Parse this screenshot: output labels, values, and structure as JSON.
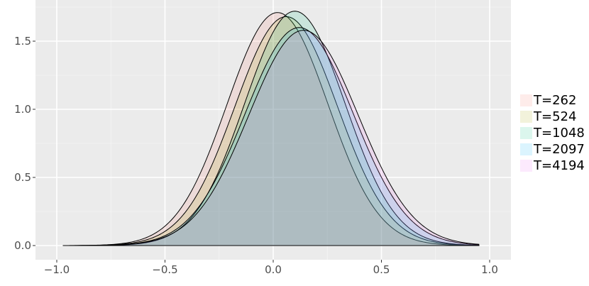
{
  "chart_data": {
    "type": "area",
    "title": "",
    "xlabel": "",
    "ylabel": "",
    "xlim": [
      -1.0,
      1.0
    ],
    "ylim": [
      0.0,
      1.75
    ],
    "x_ticks": [
      -1.0,
      -0.5,
      0.0,
      0.5,
      1.0
    ],
    "x_tick_labels": [
      "-1.0",
      "-0.5",
      "0.0",
      "0.5",
      "1.0"
    ],
    "y_ticks": [
      0.0,
      0.5,
      1.0,
      1.5
    ],
    "y_tick_labels": [
      "0.0",
      "0.5",
      "1.0",
      "1.5"
    ],
    "grid": true,
    "background": "#ebebeb",
    "legend_position": "right",
    "domain": [
      -0.97,
      0.95
    ],
    "series": [
      {
        "name": "T=262",
        "peak_x": 0.02,
        "peak_y": 1.71,
        "color": "#f8766d"
      },
      {
        "name": "T=524",
        "peak_x": 0.06,
        "peak_y": 1.68,
        "color": "#a3a500"
      },
      {
        "name": "T=1048",
        "peak_x": 0.1,
        "peak_y": 1.72,
        "color": "#00bf7d"
      },
      {
        "name": "T=2097",
        "peak_x": 0.12,
        "peak_y": 1.6,
        "color": "#00b0f6"
      },
      {
        "name": "T=4194",
        "peak_x": 0.14,
        "peak_y": 1.58,
        "color": "#e76bf3"
      }
    ]
  }
}
